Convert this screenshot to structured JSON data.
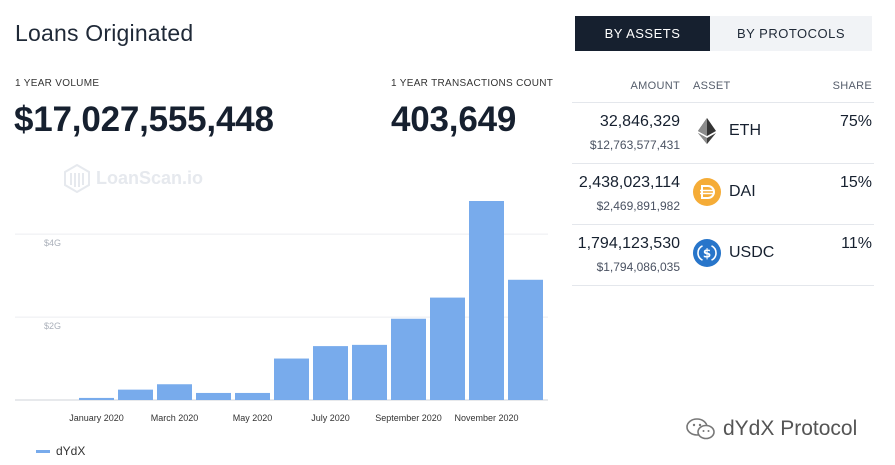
{
  "header": {
    "title": "Loans Originated"
  },
  "stats": {
    "volume_label": "1 YEAR VOLUME",
    "volume_value": "$17,027,555,448",
    "tx_label": "1 YEAR TRANSACTIONS COUNT",
    "tx_value": "403,649"
  },
  "watermark": {
    "text": "LoanScan.io"
  },
  "chart_data": {
    "type": "bar",
    "categories": [
      "Dec 2019",
      "Jan 2020",
      "Feb 2020",
      "Mar 2020",
      "Apr 2020",
      "May 2020",
      "Jun 2020",
      "Jul 2020",
      "Aug 2020",
      "Sep 2020",
      "Oct 2020",
      "Nov 2020",
      "Dec 2020"
    ],
    "x_tick_labels": [
      {
        "index": 1,
        "label": "January 2020"
      },
      {
        "index": 3,
        "label": "March 2020"
      },
      {
        "index": 5,
        "label": "May 2020"
      },
      {
        "index": 7,
        "label": "July 2020"
      },
      {
        "index": 9,
        "label": "September 2020"
      },
      {
        "index": 11,
        "label": "November 2020"
      }
    ],
    "series": [
      {
        "name": "dYdX",
        "color": "#78abec",
        "values": [
          0,
          0.05,
          0.25,
          0.38,
          0.17,
          0.17,
          1.0,
          1.3,
          1.33,
          1.96,
          2.47,
          4.8,
          2.9
        ]
      }
    ],
    "y_ticks": [
      {
        "value": 2,
        "label": "$2G"
      },
      {
        "value": 4,
        "label": "$4G"
      }
    ],
    "ylim": [
      0,
      4.8
    ],
    "grid": true,
    "legend": "bottom-left"
  },
  "toggle": {
    "active_label": "BY ASSETS",
    "inactive_label": "BY PROTOCOLS"
  },
  "table": {
    "headers": {
      "amount": "AMOUNT",
      "asset": "ASSET",
      "share": "SHARE"
    },
    "rows": [
      {
        "amount": "32,846,329",
        "usd": "$12,763,577,431",
        "asset": "ETH",
        "share": "75%",
        "icon": "eth-icon"
      },
      {
        "amount": "2,438,023,114",
        "usd": "$2,469,891,982",
        "asset": "DAI",
        "share": "15%",
        "icon": "dai-icon"
      },
      {
        "amount": "1,794,123,530",
        "usd": "$1,794,086,035",
        "asset": "USDC",
        "share": "11%",
        "icon": "usdc-icon"
      }
    ]
  },
  "brand": {
    "text": "dYdX Protocol",
    "icon": "wechat-icon"
  },
  "colors": {
    "dark": "#16202f",
    "bar": "#78abec",
    "dai": "#f5ac37",
    "usdc": "#2775ca"
  }
}
